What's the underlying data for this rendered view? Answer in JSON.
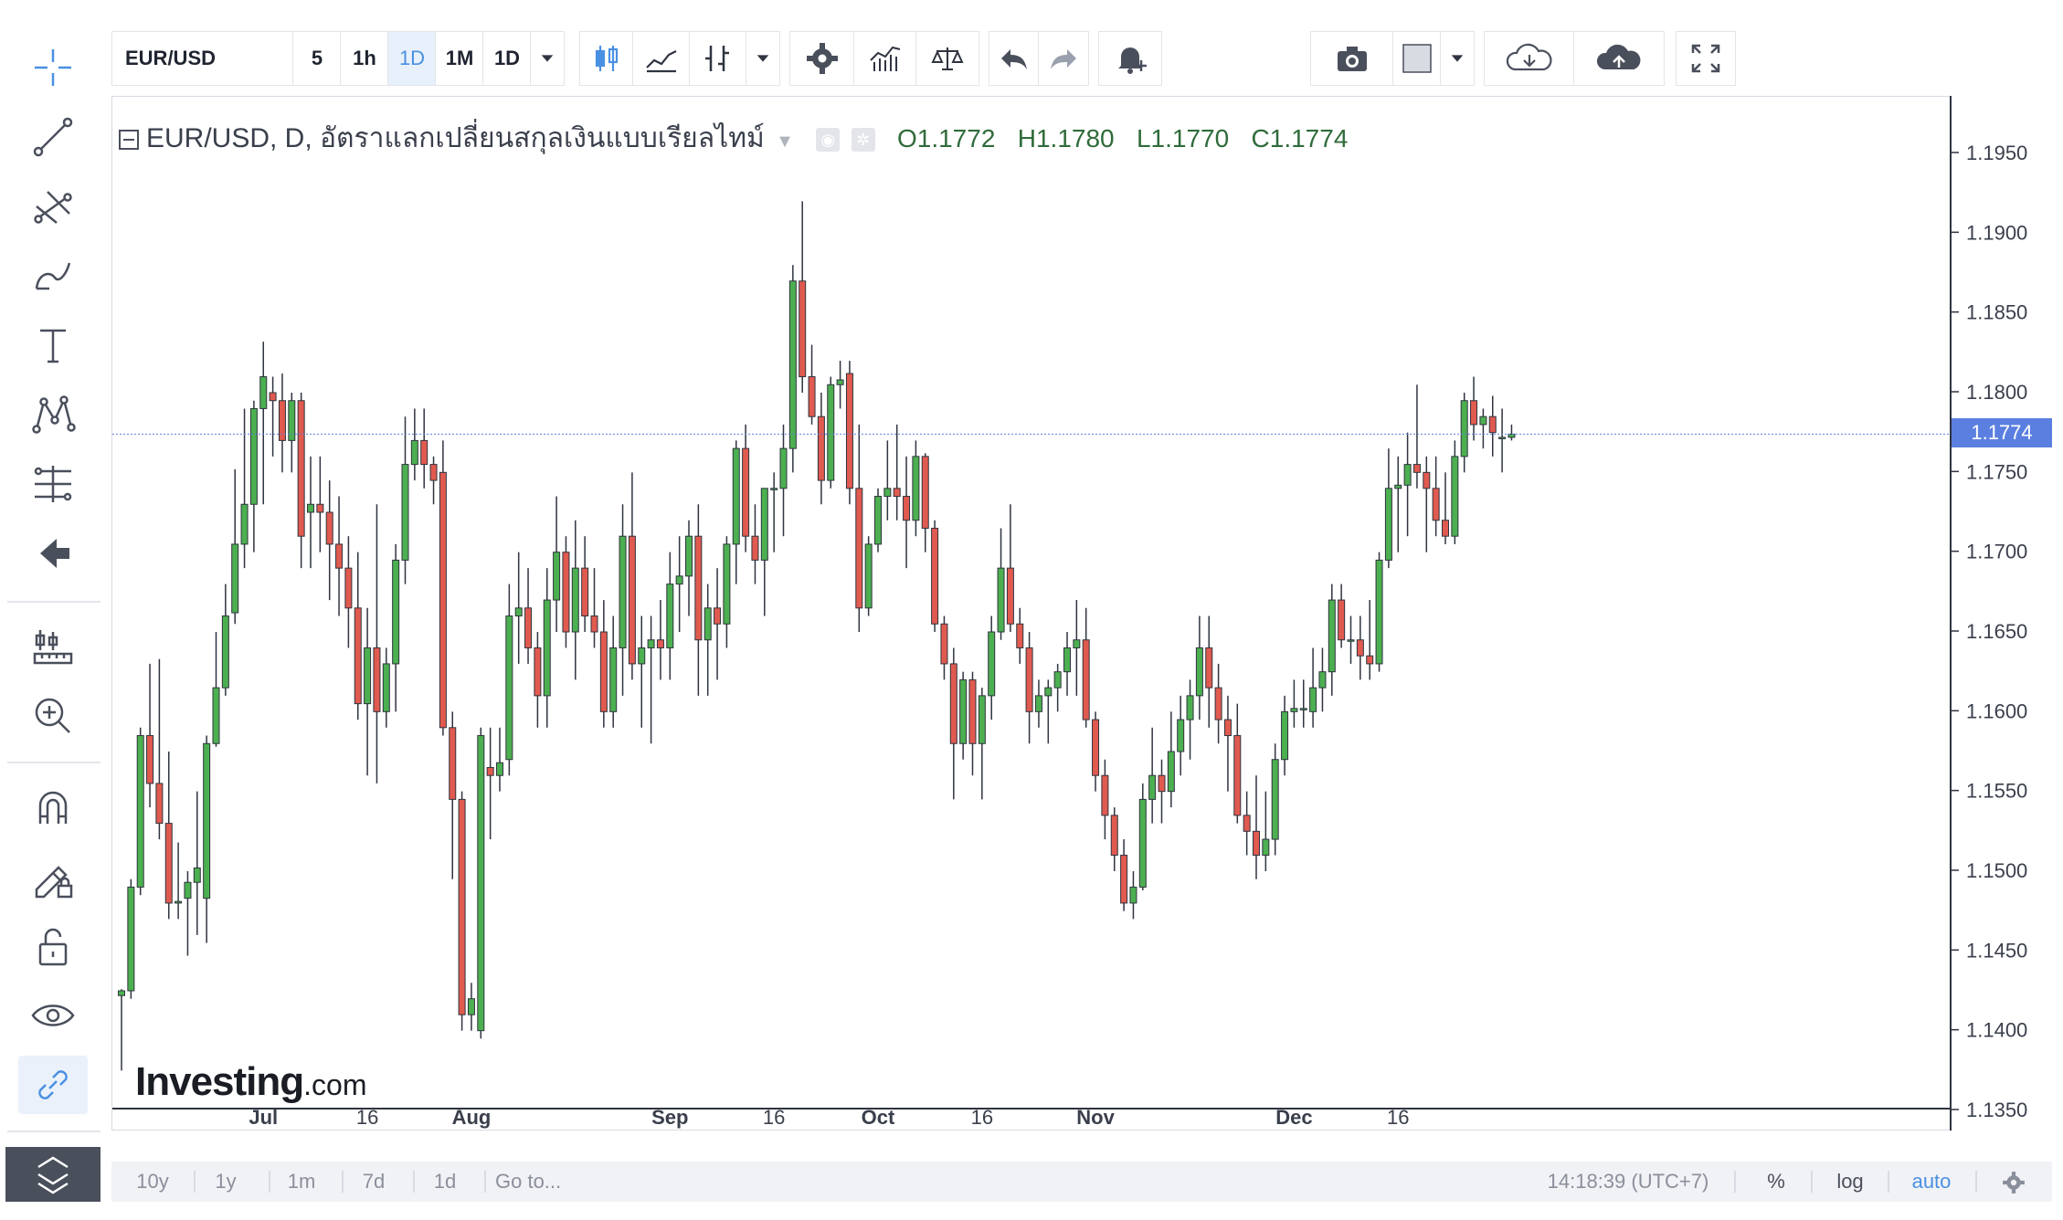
{
  "toolbar": {
    "symbol": "EUR/USD",
    "intervals": [
      "5",
      "1h",
      "1D",
      "1M",
      "1D"
    ],
    "selected_interval": "1D"
  },
  "legend": {
    "title": "EUR/USD, D, อัตราแลกเปลี่ยนสกุลเงินแบบเรียลไทม์",
    "o_label": "O",
    "o_value": "1.1772",
    "h_label": "H",
    "h_value": "1.1780",
    "l_label": "L",
    "l_value": "1.1770",
    "c_label": "C",
    "c_value": "1.1774"
  },
  "watermark": {
    "brand": "Investing",
    "suffix": ".com"
  },
  "bottom_bar": {
    "ranges": [
      "10y",
      "1y",
      "1m",
      "7d",
      "1d"
    ],
    "goto": "Go to...",
    "clock": "14:18:39 (UTC+7)",
    "percent": "%",
    "log": "log",
    "auto": "auto"
  },
  "colors": {
    "up": "#4caf50",
    "down": "#e05a4f",
    "price_tag": "#5b7fe0",
    "wick": "#2f3440"
  },
  "chart_data": {
    "type": "candlestick",
    "ylim": [
      1.133,
      1.197
    ],
    "yticks": [
      1.195,
      1.19,
      1.185,
      1.18,
      1.175,
      1.17,
      1.165,
      1.16,
      1.155,
      1.15,
      1.145,
      1.14,
      1.135
    ],
    "ytick_labels": [
      "1.1950",
      "1.1900",
      "1.1850",
      "1.1800",
      "1.1750",
      "1.1700",
      "1.1650",
      "1.1600",
      "1.1550",
      "1.1500",
      "1.1450",
      "1.1400",
      "1.1350"
    ],
    "xtick_labels": [
      {
        "label": "Jul",
        "index": 15,
        "bold": true
      },
      {
        "label": "16",
        "index": 26,
        "bold": false
      },
      {
        "label": "Aug",
        "index": 37,
        "bold": true
      },
      {
        "label": "Sep",
        "index": 58,
        "bold": true
      },
      {
        "label": "16",
        "index": 69,
        "bold": false
      },
      {
        "label": "Oct",
        "index": 80,
        "bold": true
      },
      {
        "label": "16",
        "index": 91,
        "bold": false
      },
      {
        "label": "Nov",
        "index": 103,
        "bold": true
      },
      {
        "label": "Dec",
        "index": 124,
        "bold": true
      },
      {
        "label": "16",
        "index": 135,
        "bold": false
      }
    ],
    "last_price": "1.1774",
    "last_value": 1.1774,
    "candles": [
      [
        1.1422,
        1.1426,
        1.1375,
        1.1425
      ],
      [
        1.1425,
        1.1495,
        1.142,
        1.149
      ],
      [
        1.149,
        1.159,
        1.1485,
        1.1585
      ],
      [
        1.1585,
        1.163,
        1.154,
        1.1555
      ],
      [
        1.1555,
        1.1633,
        1.152,
        1.153
      ],
      [
        1.153,
        1.1575,
        1.147,
        1.148
      ],
      [
        1.148,
        1.1518,
        1.147,
        1.1481
      ],
      [
        1.1483,
        1.15,
        1.1447,
        1.1493
      ],
      [
        1.1493,
        1.155,
        1.146,
        1.1502
      ],
      [
        1.1483,
        1.1585,
        1.1455,
        1.158
      ],
      [
        1.158,
        1.165,
        1.1578,
        1.1615
      ],
      [
        1.1615,
        1.168,
        1.161,
        1.166
      ],
      [
        1.1662,
        1.1752,
        1.1655,
        1.1705
      ],
      [
        1.1705,
        1.179,
        1.169,
        1.173
      ],
      [
        1.173,
        1.1795,
        1.17,
        1.179
      ],
      [
        1.179,
        1.1832,
        1.173,
        1.181
      ],
      [
        1.18,
        1.181,
        1.176,
        1.1795
      ],
      [
        1.1795,
        1.1812,
        1.175,
        1.177
      ],
      [
        1.177,
        1.18,
        1.175,
        1.1795
      ],
      [
        1.1795,
        1.18,
        1.169,
        1.171
      ],
      [
        1.1725,
        1.176,
        1.169,
        1.173
      ],
      [
        1.173,
        1.176,
        1.17,
        1.1725
      ],
      [
        1.1725,
        1.1745,
        1.167,
        1.1705
      ],
      [
        1.1705,
        1.1735,
        1.166,
        1.169
      ],
      [
        1.169,
        1.171,
        1.164,
        1.1665
      ],
      [
        1.1665,
        1.17,
        1.1595,
        1.1605
      ],
      [
        1.1605,
        1.1665,
        1.156,
        1.164
      ],
      [
        1.164,
        1.173,
        1.1555,
        1.16
      ],
      [
        1.16,
        1.164,
        1.159,
        1.163
      ],
      [
        1.163,
        1.1705,
        1.16,
        1.1695
      ],
      [
        1.1695,
        1.1785,
        1.168,
        1.1755
      ],
      [
        1.1755,
        1.179,
        1.1745,
        1.177
      ],
      [
        1.177,
        1.179,
        1.174,
        1.1755
      ],
      [
        1.1755,
        1.176,
        1.173,
        1.1745
      ],
      [
        1.175,
        1.177,
        1.1585,
        1.159
      ],
      [
        1.159,
        1.16,
        1.1495,
        1.1545
      ],
      [
        1.1545,
        1.155,
        1.14,
        1.141
      ],
      [
        1.141,
        1.143,
        1.14,
        1.142
      ],
      [
        1.14,
        1.159,
        1.1395,
        1.1585
      ],
      [
        1.1565,
        1.159,
        1.152,
        1.156
      ],
      [
        1.156,
        1.159,
        1.155,
        1.1568
      ],
      [
        1.157,
        1.168,
        1.156,
        1.166
      ],
      [
        1.166,
        1.17,
        1.163,
        1.1665
      ],
      [
        1.1665,
        1.169,
        1.163,
        1.164
      ],
      [
        1.164,
        1.165,
        1.159,
        1.161
      ],
      [
        1.161,
        1.169,
        1.159,
        1.167
      ],
      [
        1.167,
        1.1735,
        1.165,
        1.17
      ],
      [
        1.17,
        1.171,
        1.164,
        1.165
      ],
      [
        1.165,
        1.172,
        1.162,
        1.169
      ],
      [
        1.169,
        1.171,
        1.165,
        1.166
      ],
      [
        1.166,
        1.169,
        1.164,
        1.165
      ],
      [
        1.165,
        1.167,
        1.159,
        1.16
      ],
      [
        1.16,
        1.166,
        1.159,
        1.164
      ],
      [
        1.164,
        1.173,
        1.161,
        1.171
      ],
      [
        1.171,
        1.175,
        1.162,
        1.163
      ],
      [
        1.163,
        1.166,
        1.159,
        1.164
      ],
      [
        1.164,
        1.166,
        1.158,
        1.1645
      ],
      [
        1.1645,
        1.167,
        1.162,
        1.164
      ],
      [
        1.164,
        1.17,
        1.162,
        1.168
      ],
      [
        1.168,
        1.171,
        1.165,
        1.1685
      ],
      [
        1.1685,
        1.172,
        1.166,
        1.171
      ],
      [
        1.171,
        1.173,
        1.161,
        1.1645
      ],
      [
        1.1645,
        1.168,
        1.161,
        1.1665
      ],
      [
        1.1665,
        1.169,
        1.162,
        1.1655
      ],
      [
        1.1655,
        1.171,
        1.164,
        1.1705
      ],
      [
        1.1705,
        1.177,
        1.168,
        1.1765
      ],
      [
        1.1765,
        1.178,
        1.17,
        1.171
      ],
      [
        1.171,
        1.173,
        1.168,
        1.1695
      ],
      [
        1.1695,
        1.174,
        1.166,
        1.174
      ],
      [
        1.174,
        1.175,
        1.17,
        1.174
      ],
      [
        1.174,
        1.178,
        1.171,
        1.1765
      ],
      [
        1.1765,
        1.188,
        1.175,
        1.187
      ],
      [
        1.187,
        1.192,
        1.18,
        1.181
      ],
      [
        1.181,
        1.183,
        1.178,
        1.1785
      ],
      [
        1.1785,
        1.18,
        1.173,
        1.1745
      ],
      [
        1.1745,
        1.181,
        1.174,
        1.1805
      ],
      [
        1.1805,
        1.182,
        1.179,
        1.1808
      ],
      [
        1.1812,
        1.182,
        1.173,
        1.174
      ],
      [
        1.174,
        1.178,
        1.165,
        1.1665
      ],
      [
        1.1665,
        1.171,
        1.166,
        1.1705
      ],
      [
        1.1705,
        1.174,
        1.17,
        1.1735
      ],
      [
        1.1735,
        1.177,
        1.172,
        1.174
      ],
      [
        1.174,
        1.178,
        1.172,
        1.1735
      ],
      [
        1.1735,
        1.176,
        1.169,
        1.172
      ],
      [
        1.172,
        1.177,
        1.171,
        1.176
      ],
      [
        1.176,
        1.1762,
        1.17,
        1.1715
      ],
      [
        1.1715,
        1.172,
        1.165,
        1.1655
      ],
      [
        1.1655,
        1.166,
        1.162,
        1.163
      ],
      [
        1.163,
        1.164,
        1.1545,
        1.158
      ],
      [
        1.158,
        1.1625,
        1.157,
        1.162
      ],
      [
        1.162,
        1.1625,
        1.156,
        1.158
      ],
      [
        1.158,
        1.1615,
        1.1545,
        1.161
      ],
      [
        1.161,
        1.166,
        1.1595,
        1.165
      ],
      [
        1.165,
        1.1715,
        1.1645,
        1.169
      ],
      [
        1.169,
        1.173,
        1.165,
        1.1655
      ],
      [
        1.1655,
        1.1665,
        1.163,
        1.164
      ],
      [
        1.164,
        1.165,
        1.158,
        1.16
      ],
      [
        1.16,
        1.162,
        1.159,
        1.161
      ],
      [
        1.161,
        1.162,
        1.158,
        1.1615
      ],
      [
        1.1615,
        1.163,
        1.16,
        1.1625
      ],
      [
        1.1625,
        1.165,
        1.161,
        1.164
      ],
      [
        1.164,
        1.167,
        1.161,
        1.1645
      ],
      [
        1.1645,
        1.1665,
        1.159,
        1.1595
      ],
      [
        1.1595,
        1.16,
        1.155,
        1.156
      ],
      [
        1.156,
        1.157,
        1.152,
        1.1535
      ],
      [
        1.1535,
        1.154,
        1.15,
        1.151
      ],
      [
        1.151,
        1.152,
        1.1475,
        1.148
      ],
      [
        1.148,
        1.15,
        1.147,
        1.149
      ],
      [
        1.149,
        1.1555,
        1.1488,
        1.1545
      ],
      [
        1.1545,
        1.159,
        1.153,
        1.156
      ],
      [
        1.156,
        1.157,
        1.153,
        1.155
      ],
      [
        1.155,
        1.16,
        1.154,
        1.1575
      ],
      [
        1.1575,
        1.161,
        1.156,
        1.1595
      ],
      [
        1.1595,
        1.162,
        1.157,
        1.161
      ],
      [
        1.161,
        1.166,
        1.1595,
        1.164
      ],
      [
        1.164,
        1.166,
        1.159,
        1.1615
      ],
      [
        1.1615,
        1.163,
        1.158,
        1.1595
      ],
      [
        1.1595,
        1.161,
        1.155,
        1.1585
      ],
      [
        1.1585,
        1.1605,
        1.153,
        1.1535
      ],
      [
        1.1535,
        1.155,
        1.151,
        1.1525
      ],
      [
        1.1525,
        1.156,
        1.1495,
        1.151
      ],
      [
        1.151,
        1.155,
        1.15,
        1.152
      ],
      [
        1.152,
        1.158,
        1.151,
        1.157
      ],
      [
        1.157,
        1.161,
        1.156,
        1.16
      ],
      [
        1.16,
        1.162,
        1.159,
        1.1602
      ],
      [
        1.1602,
        1.162,
        1.159,
        1.1602
      ],
      [
        1.16,
        1.164,
        1.159,
        1.1615
      ],
      [
        1.1615,
        1.164,
        1.16,
        1.1625
      ],
      [
        1.1625,
        1.168,
        1.161,
        1.167
      ],
      [
        1.167,
        1.168,
        1.164,
        1.1645
      ],
      [
        1.1645,
        1.166,
        1.163,
        1.1645
      ],
      [
        1.1645,
        1.166,
        1.162,
        1.1635
      ],
      [
        1.1635,
        1.167,
        1.162,
        1.163
      ],
      [
        1.163,
        1.17,
        1.1625,
        1.1695
      ],
      [
        1.1695,
        1.1765,
        1.169,
        1.174
      ],
      [
        1.174,
        1.176,
        1.17,
        1.1742
      ],
      [
        1.1742,
        1.1775,
        1.171,
        1.1755
      ],
      [
        1.1755,
        1.1805,
        1.174,
        1.175
      ],
      [
        1.175,
        1.176,
        1.17,
        1.174
      ],
      [
        1.174,
        1.176,
        1.171,
        1.172
      ],
      [
        1.172,
        1.175,
        1.1705,
        1.171
      ],
      [
        1.171,
        1.177,
        1.1705,
        1.176
      ],
      [
        1.176,
        1.18,
        1.175,
        1.1795
      ],
      [
        1.1795,
        1.181,
        1.177,
        1.178
      ],
      [
        1.178,
        1.179,
        1.1765,
        1.1785
      ],
      [
        1.1785,
        1.1798,
        1.176,
        1.1775
      ],
      [
        1.1772,
        1.179,
        1.175,
        1.1772
      ],
      [
        1.1772,
        1.178,
        1.177,
        1.1774
      ]
    ]
  }
}
